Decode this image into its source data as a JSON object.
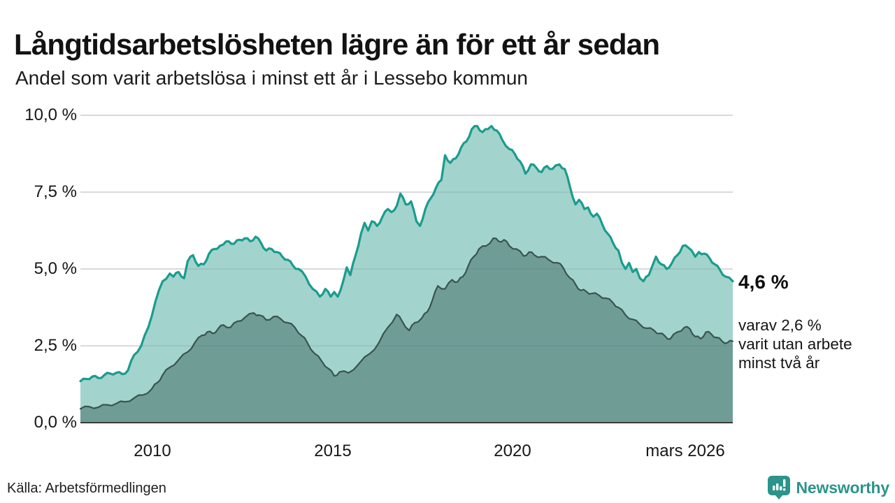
{
  "title": "Långtidsarbetslösheten lägre än för ett år sedan",
  "subtitle": "Andel som varit arbetslösa i minst ett år i Lessebo kommun",
  "source": "Källa: Arbetsförmedlingen",
  "logo": {
    "name": "Newsworthy"
  },
  "annotation": {
    "value_label": "4,6 %",
    "detail_lines": {
      "0": "varav 2,6 %",
      "1": "varit utan arbete",
      "2": "minst två år"
    }
  },
  "colors": {
    "line_total": "#1a9c8e",
    "fill_total": "#a2d4cd",
    "line_two_plus": "#3a534e",
    "fill_two_plus": "#6f9d96",
    "gridline": "#e4e4e9",
    "axis_line": "#3b3b3b",
    "logo_teal": "#2c948b"
  },
  "chart_data": {
    "type": "area",
    "title": "Långtidsarbetslösheten lägre än för ett år sedan",
    "subtitle": "Andel som varit arbetslösa i minst ett år i Lessebo kommun",
    "x_axis": {
      "range": [
        2008.0,
        2026.25
      ],
      "ticks": [
        {
          "year": 2010,
          "label": "2010"
        },
        {
          "year": 2015,
          "label": "2015"
        },
        {
          "year": 2020,
          "label": "2020"
        },
        {
          "year": 2026.25,
          "label": "mars 2026"
        }
      ]
    },
    "y_axis": {
      "range": [
        0,
        10
      ],
      "unit": "%",
      "ticks": [
        {
          "value": 0.0,
          "label": "0,0 %"
        },
        {
          "value": 2.5,
          "label": "2,5 %"
        },
        {
          "value": 5.0,
          "label": "5,0 %"
        },
        {
          "value": 7.5,
          "label": "7,5 %"
        },
        {
          "value": 10.0,
          "label": "10,0 %"
        }
      ]
    },
    "legend_position": "none",
    "grid": true,
    "series": [
      {
        "name": "Andel som varit arbetslösa minst ett år",
        "line_color": "#1a9c8e",
        "fill_color": "#a2d4cd",
        "end_label": "4,6 %",
        "points": [
          [
            2008.0,
            1.35
          ],
          [
            2008.17,
            1.42
          ],
          [
            2008.33,
            1.5
          ],
          [
            2008.5,
            1.45
          ],
          [
            2008.67,
            1.55
          ],
          [
            2008.83,
            1.6
          ],
          [
            2009.0,
            1.62
          ],
          [
            2009.17,
            1.58
          ],
          [
            2009.33,
            1.7
          ],
          [
            2009.5,
            2.2
          ],
          [
            2009.7,
            2.5
          ],
          [
            2009.9,
            3.1
          ],
          [
            2010.1,
            3.95
          ],
          [
            2010.3,
            4.6
          ],
          [
            2010.5,
            4.85
          ],
          [
            2010.6,
            4.75
          ],
          [
            2010.75,
            4.9
          ],
          [
            2010.9,
            4.7
          ],
          [
            2011.0,
            5.25
          ],
          [
            2011.15,
            5.45
          ],
          [
            2011.3,
            5.1
          ],
          [
            2011.45,
            5.15
          ],
          [
            2011.6,
            5.5
          ],
          [
            2011.75,
            5.65
          ],
          [
            2011.9,
            5.75
          ],
          [
            2012.0,
            5.8
          ],
          [
            2012.15,
            5.9
          ],
          [
            2012.3,
            5.82
          ],
          [
            2012.45,
            5.95
          ],
          [
            2012.6,
            6.0
          ],
          [
            2012.75,
            5.9
          ],
          [
            2012.9,
            6.05
          ],
          [
            2013.05,
            5.85
          ],
          [
            2013.2,
            5.6
          ],
          [
            2013.35,
            5.65
          ],
          [
            2013.5,
            5.55
          ],
          [
            2013.65,
            5.4
          ],
          [
            2013.8,
            5.3
          ],
          [
            2013.95,
            5.1
          ],
          [
            2014.1,
            5.0
          ],
          [
            2014.3,
            4.75
          ],
          [
            2014.5,
            4.35
          ],
          [
            2014.7,
            4.1
          ],
          [
            2014.85,
            4.35
          ],
          [
            2015.0,
            4.1
          ],
          [
            2015.1,
            4.25
          ],
          [
            2015.2,
            4.1
          ],
          [
            2015.35,
            4.6
          ],
          [
            2015.45,
            5.05
          ],
          [
            2015.55,
            4.8
          ],
          [
            2015.7,
            5.45
          ],
          [
            2015.85,
            6.15
          ],
          [
            2015.95,
            6.5
          ],
          [
            2016.05,
            6.25
          ],
          [
            2016.15,
            6.55
          ],
          [
            2016.3,
            6.4
          ],
          [
            2016.45,
            6.7
          ],
          [
            2016.6,
            6.95
          ],
          [
            2016.7,
            6.85
          ],
          [
            2016.85,
            7.05
          ],
          [
            2016.95,
            7.45
          ],
          [
            2017.1,
            7.1
          ],
          [
            2017.25,
            7.2
          ],
          [
            2017.4,
            6.55
          ],
          [
            2017.5,
            6.4
          ],
          [
            2017.65,
            6.95
          ],
          [
            2017.8,
            7.3
          ],
          [
            2017.95,
            7.65
          ],
          [
            2018.1,
            7.9
          ],
          [
            2018.2,
            8.7
          ],
          [
            2018.35,
            8.45
          ],
          [
            2018.5,
            8.6
          ],
          [
            2018.65,
            8.95
          ],
          [
            2018.8,
            9.15
          ],
          [
            2018.95,
            9.55
          ],
          [
            2019.1,
            9.65
          ],
          [
            2019.25,
            9.45
          ],
          [
            2019.4,
            9.55
          ],
          [
            2019.5,
            9.65
          ],
          [
            2019.65,
            9.5
          ],
          [
            2019.8,
            9.2
          ],
          [
            2020.0,
            8.9
          ],
          [
            2020.15,
            8.75
          ],
          [
            2020.3,
            8.5
          ],
          [
            2020.45,
            8.1
          ],
          [
            2020.6,
            8.4
          ],
          [
            2020.75,
            8.3
          ],
          [
            2020.9,
            8.15
          ],
          [
            2021.05,
            8.35
          ],
          [
            2021.2,
            8.25
          ],
          [
            2021.4,
            8.4
          ],
          [
            2021.55,
            8.25
          ],
          [
            2021.7,
            7.65
          ],
          [
            2021.85,
            7.1
          ],
          [
            2021.95,
            7.25
          ],
          [
            2022.1,
            6.95
          ],
          [
            2022.2,
            7.0
          ],
          [
            2022.35,
            6.7
          ],
          [
            2022.45,
            6.8
          ],
          [
            2022.6,
            6.45
          ],
          [
            2022.75,
            6.15
          ],
          [
            2022.9,
            5.85
          ],
          [
            2023.05,
            5.6
          ],
          [
            2023.15,
            5.2
          ],
          [
            2023.25,
            5.0
          ],
          [
            2023.35,
            5.2
          ],
          [
            2023.45,
            4.9
          ],
          [
            2023.55,
            5.0
          ],
          [
            2023.65,
            4.7
          ],
          [
            2023.75,
            4.6
          ],
          [
            2023.9,
            4.8
          ],
          [
            2024.0,
            5.1
          ],
          [
            2024.1,
            5.4
          ],
          [
            2024.25,
            5.15
          ],
          [
            2024.4,
            5.0
          ],
          [
            2024.55,
            5.2
          ],
          [
            2024.7,
            5.45
          ],
          [
            2024.85,
            5.75
          ],
          [
            2025.0,
            5.7
          ],
          [
            2025.1,
            5.6
          ],
          [
            2025.2,
            5.4
          ],
          [
            2025.3,
            5.55
          ],
          [
            2025.45,
            5.5
          ],
          [
            2025.6,
            5.35
          ],
          [
            2025.75,
            5.15
          ],
          [
            2025.9,
            4.95
          ],
          [
            2026.05,
            4.75
          ],
          [
            2026.25,
            4.6
          ]
        ]
      },
      {
        "name": "varav arbetslösa minst två år",
        "line_color": "#3a534e",
        "fill_color": "#6f9d96",
        "end_label": "2,6 %",
        "points": [
          [
            2008.0,
            0.45
          ],
          [
            2008.25,
            0.52
          ],
          [
            2008.5,
            0.5
          ],
          [
            2008.75,
            0.58
          ],
          [
            2009.0,
            0.62
          ],
          [
            2009.25,
            0.68
          ],
          [
            2009.5,
            0.8
          ],
          [
            2009.75,
            0.9
          ],
          [
            2010.0,
            1.1
          ],
          [
            2010.15,
            1.3
          ],
          [
            2010.3,
            1.55
          ],
          [
            2010.5,
            1.8
          ],
          [
            2010.75,
            2.05
          ],
          [
            2011.0,
            2.3
          ],
          [
            2011.2,
            2.6
          ],
          [
            2011.4,
            2.84
          ],
          [
            2011.55,
            2.95
          ],
          [
            2011.7,
            2.9
          ],
          [
            2011.85,
            3.05
          ],
          [
            2012.0,
            3.18
          ],
          [
            2012.2,
            3.1
          ],
          [
            2012.4,
            3.3
          ],
          [
            2012.6,
            3.42
          ],
          [
            2012.85,
            3.57
          ],
          [
            2013.0,
            3.5
          ],
          [
            2013.2,
            3.34
          ],
          [
            2013.4,
            3.45
          ],
          [
            2013.6,
            3.38
          ],
          [
            2013.8,
            3.25
          ],
          [
            2014.0,
            3.1
          ],
          [
            2014.2,
            2.82
          ],
          [
            2014.35,
            2.6
          ],
          [
            2014.55,
            2.25
          ],
          [
            2014.75,
            2.0
          ],
          [
            2014.95,
            1.75
          ],
          [
            2015.1,
            1.52
          ],
          [
            2015.25,
            1.65
          ],
          [
            2015.5,
            1.62
          ],
          [
            2015.8,
            1.93
          ],
          [
            2016.1,
            2.25
          ],
          [
            2016.35,
            2.6
          ],
          [
            2016.6,
            3.1
          ],
          [
            2016.85,
            3.52
          ],
          [
            2017.0,
            3.3
          ],
          [
            2017.2,
            3.0
          ],
          [
            2017.35,
            3.25
          ],
          [
            2017.55,
            3.4
          ],
          [
            2017.7,
            3.6
          ],
          [
            2017.85,
            4.0
          ],
          [
            2018.0,
            4.45
          ],
          [
            2018.2,
            4.35
          ],
          [
            2018.4,
            4.65
          ],
          [
            2018.55,
            4.58
          ],
          [
            2018.7,
            4.75
          ],
          [
            2018.85,
            5.1
          ],
          [
            2019.0,
            5.4
          ],
          [
            2019.15,
            5.65
          ],
          [
            2019.35,
            5.75
          ],
          [
            2019.55,
            6.0
          ],
          [
            2019.7,
            5.9
          ],
          [
            2019.85,
            5.95
          ],
          [
            2020.0,
            5.75
          ],
          [
            2020.2,
            5.65
          ],
          [
            2020.4,
            5.42
          ],
          [
            2020.55,
            5.55
          ],
          [
            2020.7,
            5.45
          ],
          [
            2020.9,
            5.4
          ],
          [
            2021.1,
            5.3
          ],
          [
            2021.35,
            5.2
          ],
          [
            2021.5,
            5.05
          ],
          [
            2021.7,
            4.7
          ],
          [
            2021.85,
            4.5
          ],
          [
            2022.0,
            4.3
          ],
          [
            2022.15,
            4.27
          ],
          [
            2022.3,
            4.2
          ],
          [
            2022.5,
            4.15
          ],
          [
            2022.7,
            4.05
          ],
          [
            2022.9,
            3.9
          ],
          [
            2023.05,
            3.75
          ],
          [
            2023.25,
            3.5
          ],
          [
            2023.45,
            3.36
          ],
          [
            2023.65,
            3.2
          ],
          [
            2023.85,
            3.07
          ],
          [
            2024.05,
            3.0
          ],
          [
            2024.2,
            2.9
          ],
          [
            2024.35,
            2.82
          ],
          [
            2024.5,
            2.72
          ],
          [
            2024.7,
            2.95
          ],
          [
            2024.9,
            3.1
          ],
          [
            2025.05,
            3.05
          ],
          [
            2025.2,
            2.8
          ],
          [
            2025.35,
            2.73
          ],
          [
            2025.5,
            2.95
          ],
          [
            2025.65,
            2.88
          ],
          [
            2025.8,
            2.77
          ],
          [
            2025.95,
            2.65
          ],
          [
            2026.1,
            2.6
          ],
          [
            2026.25,
            2.65
          ]
        ]
      }
    ]
  }
}
